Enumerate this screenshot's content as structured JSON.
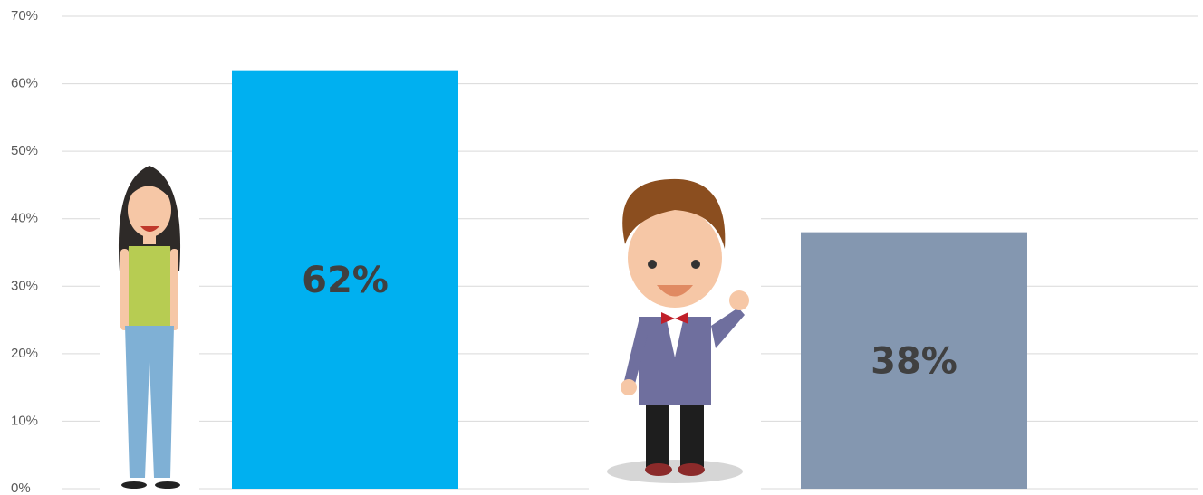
{
  "chart_data": {
    "type": "bar",
    "categories": [
      null,
      null
    ],
    "values": [
      62,
      38
    ],
    "value_labels": [
      "62%",
      "38%"
    ],
    "colors": [
      "#00b0f0",
      "#8497b0"
    ],
    "ylim": [
      0,
      70
    ],
    "yticks": [
      {
        "value": 0,
        "label": "0%"
      },
      {
        "value": 10,
        "label": "10%"
      },
      {
        "value": 20,
        "label": "20%"
      },
      {
        "value": 30,
        "label": "30%"
      },
      {
        "value": 40,
        "label": "40%"
      },
      {
        "value": 50,
        "label": "50%"
      },
      {
        "value": 60,
        "label": "60%"
      },
      {
        "value": 70,
        "label": "70%"
      }
    ],
    "grid": true
  }
}
